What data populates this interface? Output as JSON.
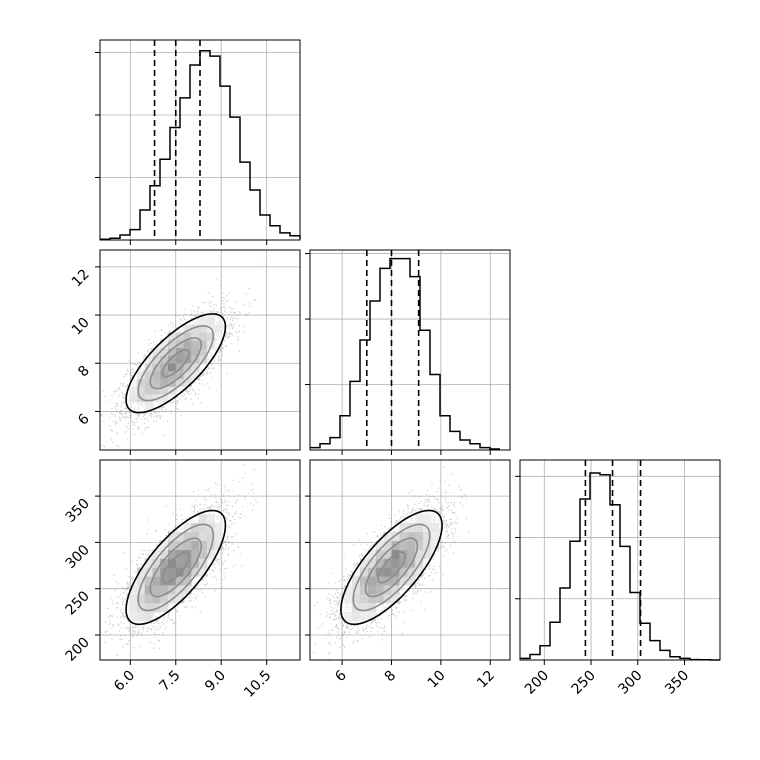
{
  "chart_data": {
    "type": "corner",
    "title": "",
    "grid": true,
    "parameters": [
      {
        "xlim": [
          5.0,
          11.6
        ],
        "ticks": [
          6.0,
          7.5,
          9.0,
          10.5
        ],
        "tick_labels": [
          "6.0",
          "7.5",
          "9.0",
          "10.5"
        ]
      },
      {
        "xlim": [
          4.7,
          12.8
        ],
        "x_ticks": [
          6,
          8,
          10,
          12
        ],
        "x_tick_labels": [
          "6",
          "8",
          "10",
          "12"
        ],
        "y_ticks": [
          6,
          8,
          10,
          12
        ],
        "y_tick_labels": [
          "6",
          "8",
          "10",
          "12"
        ]
      },
      {
        "xlim": [
          174,
          388
        ],
        "x_ticks": [
          200,
          250,
          300,
          350
        ],
        "x_tick_labels": [
          "200",
          "250",
          "300",
          "350"
        ],
        "y_ticks": [
          200,
          250,
          300,
          350
        ],
        "y_tick_labels": [
          "200",
          "250",
          "300",
          "350"
        ]
      }
    ],
    "histograms": [
      {
        "parameter": 0,
        "bin_start": 5.0,
        "bin_width": 0.33,
        "counts": [
          2,
          5,
          14,
          29,
          84,
          152,
          226,
          315,
          398,
          490,
          530,
          515,
          431,
          344,
          218,
          140,
          70,
          40,
          20,
          12,
          3
        ],
        "ymax": 560,
        "y_ticks": [
          175,
          350,
          525
        ],
        "quantiles": [
          6.8,
          7.5,
          8.3
        ]
      },
      {
        "parameter": 1,
        "bin_start": 4.7,
        "bin_width": 0.405,
        "counts": [
          10,
          26,
          52,
          144,
          288,
          462,
          626,
          763,
          804,
          804,
          728,
          503,
          317,
          144,
          78,
          42,
          26,
          10,
          4
        ],
        "ymax": 840,
        "y_ticks": [
          275,
          550,
          825
        ],
        "quantiles": [
          7.0,
          8.0,
          9.1
        ]
      },
      {
        "parameter": 2,
        "bin_start": 174,
        "bin_width": 10.7,
        "counts": [
          8,
          27,
          70,
          185,
          353,
          582,
          789,
          916,
          908,
          761,
          557,
          331,
          180,
          95,
          47,
          16,
          8,
          2,
          1,
          0
        ],
        "ymax": 980,
        "y_ticks": [
          300,
          600,
          900
        ],
        "quantiles": [
          244,
          273,
          303
        ]
      }
    ],
    "joint": [
      {
        "x_param": 0,
        "y_param": 1,
        "mean": [
          7.5,
          8.0
        ],
        "sd": [
          0.8,
          1.0
        ],
        "corr": 0.74
      },
      {
        "x_param": 0,
        "y_param": 2,
        "mean": [
          7.5,
          273
        ],
        "sd": [
          0.8,
          30
        ],
        "corr": 0.74
      },
      {
        "x_param": 1,
        "y_param": 2,
        "mean": [
          8.0,
          273
        ],
        "sd": [
          1.0,
          30
        ],
        "corr": 0.74
      }
    ],
    "colors": {
      "line": "#000000",
      "grid": "#b0b0b0",
      "points": "#9a9a9a",
      "density_max": "#000000"
    }
  }
}
